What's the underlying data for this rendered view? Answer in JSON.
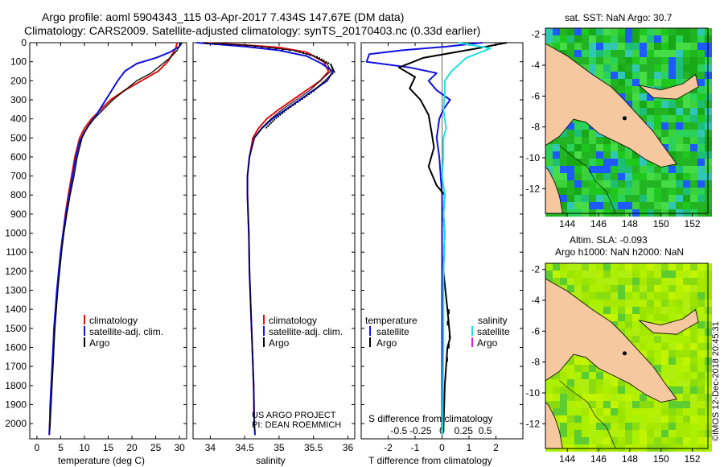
{
  "title": {
    "line1": "Argo profile: aoml 5904343_115 03-Apr-2017 7.434S 147.67E (DM data)",
    "line2": "Climatology: CARS2009. Satellite-adjusted climatology: synTS_20170403.nc (0.33d earlier)"
  },
  "colors": {
    "climatology": "#e01010",
    "satellite": "#1010e0",
    "argo": "#000000",
    "salinity_satellite": "#20e0e0",
    "salinity_argo": "#e020e0",
    "land": "#f5c8a0"
  },
  "chart_data": [
    {
      "id": "temperature",
      "type": "line",
      "xlabel": "temperature (deg C)",
      "xlim": [
        -1.5,
        31.5
      ],
      "xticks": [
        0,
        5,
        10,
        15,
        20,
        25,
        30
      ],
      "ylim": [
        0,
        2080
      ],
      "yticks": [
        0,
        100,
        200,
        300,
        400,
        500,
        600,
        700,
        800,
        900,
        1000,
        1100,
        1200,
        1300,
        1400,
        1500,
        1600,
        1700,
        1800,
        1900,
        2000
      ],
      "legend": [
        "climatology",
        "satellite-adj. clim.",
        "Argo"
      ],
      "series": [
        {
          "name": "climatology",
          "points": [
            [
              29.5,
              0
            ],
            [
              29.2,
              30
            ],
            [
              28.5,
              60
            ],
            [
              27.5,
              100
            ],
            [
              25.5,
              150
            ],
            [
              22,
              200
            ],
            [
              18.5,
              250
            ],
            [
              15.5,
              300
            ],
            [
              13.5,
              350
            ],
            [
              11.5,
              400
            ],
            [
              10,
              450
            ],
            [
              9,
              500
            ],
            [
              8,
              600
            ],
            [
              7.3,
              700
            ],
            [
              6.6,
              800
            ],
            [
              6,
              900
            ],
            [
              5.5,
              1000
            ],
            [
              5,
              1100
            ],
            [
              4.6,
              1200
            ],
            [
              4.3,
              1300
            ],
            [
              4,
              1400
            ],
            [
              3.7,
              1500
            ],
            [
              3.5,
              1600
            ],
            [
              3.3,
              1700
            ],
            [
              3.1,
              1800
            ],
            [
              2.9,
              1900
            ],
            [
              2.7,
              2000
            ],
            [
              2.6,
              2060
            ]
          ]
        },
        {
          "name": "satellite-adj. clim.",
          "points": [
            [
              30.5,
              0
            ],
            [
              30,
              20
            ],
            [
              28,
              50
            ],
            [
              25,
              80
            ],
            [
              21,
              110
            ],
            [
              18.5,
              150
            ],
            [
              17,
              200
            ],
            [
              15.5,
              260
            ],
            [
              14,
              320
            ],
            [
              12.5,
              380
            ],
            [
              11,
              430
            ],
            [
              10,
              470
            ],
            [
              9,
              520
            ],
            [
              8.2,
              600
            ],
            [
              7.5,
              700
            ],
            [
              6.8,
              800
            ],
            [
              6.1,
              900
            ],
            [
              5.5,
              1000
            ],
            [
              5,
              1100
            ],
            [
              4.6,
              1200
            ],
            [
              4.2,
              1300
            ],
            [
              3.9,
              1400
            ],
            [
              3.6,
              1500
            ],
            [
              3.4,
              1600
            ],
            [
              3.2,
              1700
            ],
            [
              3,
              1800
            ],
            [
              2.8,
              1900
            ],
            [
              2.7,
              2000
            ],
            [
              2.6,
              2060
            ]
          ]
        },
        {
          "name": "Argo",
          "points": [
            [
              30.3,
              0
            ],
            [
              29.5,
              40
            ],
            [
              28,
              80
            ],
            [
              26,
              120
            ],
            [
              24,
              160
            ],
            [
              21,
              200
            ],
            [
              18.5,
              250
            ],
            [
              16,
              300
            ],
            [
              14,
              350
            ],
            [
              12,
              400
            ],
            [
              10.5,
              450
            ],
            [
              9.5,
              500
            ],
            [
              8.5,
              600
            ],
            [
              7.8,
              700
            ],
            [
              7,
              800
            ],
            [
              6.3,
              900
            ],
            [
              5.7,
              1000
            ],
            [
              5.2,
              1100
            ],
            [
              4.8,
              1200
            ],
            [
              4.4,
              1300
            ],
            [
              4.1,
              1400
            ],
            [
              3.8,
              1500
            ],
            [
              3.6,
              1600
            ],
            [
              3.4,
              1700
            ],
            [
              3.2,
              1800
            ],
            [
              3,
              1900
            ],
            [
              2.8,
              2000
            ],
            [
              2.7,
              2040
            ]
          ]
        }
      ]
    },
    {
      "id": "salinity",
      "type": "line",
      "xlabel": "salinity",
      "xlim": [
        33.75,
        36.1
      ],
      "xticks": [
        34,
        34.5,
        35,
        35.5,
        36
      ],
      "xticklabels": [
        "34",
        "34.5",
        "35",
        "35.5",
        "36"
      ],
      "ylim": [
        0,
        2080
      ],
      "legend": [
        "climatology",
        "satellite-adj. clim.",
        "Argo"
      ],
      "annotation": [
        "US ARGO PROJECT",
        "PI: DEAN ROEMMICH"
      ],
      "series": [
        {
          "name": "climatology",
          "points": [
            [
              33.9,
              0
            ],
            [
              34.4,
              10
            ],
            [
              35,
              25
            ],
            [
              35.4,
              50
            ],
            [
              35.65,
              100
            ],
            [
              35.72,
              150
            ],
            [
              35.6,
              200
            ],
            [
              35.4,
              250
            ],
            [
              35.2,
              300
            ],
            [
              35,
              350
            ],
            [
              34.82,
              400
            ],
            [
              34.7,
              450
            ],
            [
              34.62,
              500
            ],
            [
              34.57,
              600
            ],
            [
              34.54,
              700
            ],
            [
              34.54,
              800
            ],
            [
              34.55,
              900
            ],
            [
              34.56,
              1000
            ],
            [
              34.57,
              1200
            ],
            [
              34.59,
              1400
            ],
            [
              34.61,
              1600
            ],
            [
              34.63,
              1800
            ],
            [
              34.64,
              2000
            ],
            [
              34.65,
              2060
            ]
          ]
        },
        {
          "name": "satellite-adj. clim.",
          "points": [
            [
              33.8,
              0
            ],
            [
              34.5,
              20
            ],
            [
              35,
              40
            ],
            [
              35.4,
              70
            ],
            [
              35.62,
              110
            ],
            [
              35.78,
              150
            ],
            [
              35.7,
              200
            ],
            [
              35.5,
              250
            ],
            [
              35.3,
              300
            ],
            [
              35.1,
              350
            ],
            [
              34.9,
              400
            ],
            [
              34.75,
              450
            ],
            [
              34.64,
              500
            ],
            [
              34.57,
              600
            ],
            [
              34.54,
              700
            ],
            [
              34.54,
              800
            ],
            [
              34.55,
              900
            ],
            [
              34.56,
              1000
            ],
            [
              34.57,
              1200
            ],
            [
              34.59,
              1400
            ],
            [
              34.61,
              1600
            ],
            [
              34.63,
              1800
            ],
            [
              34.64,
              2000
            ],
            [
              34.65,
              2060
            ]
          ]
        },
        {
          "name": "Argo",
          "points": [
            [
              33.9,
              0
            ],
            [
              34.6,
              15
            ],
            [
              35.2,
              40
            ],
            [
              35.5,
              70
            ],
            [
              35.7,
              110
            ],
            [
              35.75,
              150
            ],
            [
              35.6,
              200
            ],
            [
              35.45,
              250
            ],
            [
              35.25,
              300
            ],
            [
              35.05,
              350
            ],
            [
              34.88,
              400
            ],
            [
              34.74,
              450
            ],
            [
              34.64,
              500
            ],
            [
              34.57,
              600
            ],
            [
              34.54,
              700
            ],
            [
              34.54,
              800
            ],
            [
              34.55,
              900
            ],
            [
              34.56,
              1000
            ],
            [
              34.57,
              1200
            ],
            [
              34.59,
              1400
            ],
            [
              34.61,
              1600
            ],
            [
              34.63,
              1800
            ],
            [
              34.64,
              2000
            ],
            [
              34.65,
              2040
            ]
          ]
        }
      ]
    },
    {
      "id": "difference",
      "type": "line",
      "xlabel": "T difference from climatology",
      "xlabel_top": "S difference from climatology",
      "xlim": [
        -3,
        3
      ],
      "xticks": [
        -2,
        -1,
        0,
        1,
        2
      ],
      "xticklabels": [
        "-2",
        "-1",
        "0",
        "1",
        "2"
      ],
      "top_ticks_svalue": [
        -0.5,
        -0.25,
        0,
        0.25,
        0.5
      ],
      "top_ticklabels": [
        "-0.5",
        "-0.25",
        "0",
        "0.25",
        "0.5"
      ],
      "ylim": [
        0,
        2080
      ],
      "legend_temperature": {
        "header": "temperature",
        "items": [
          "satellite",
          "Argo"
        ]
      },
      "legend_salinity": {
        "header": "salinity",
        "items": [
          "satellite",
          "Argo"
        ]
      },
      "series": [
        {
          "name": "temperature satellite",
          "points": [
            [
              1.5,
              0
            ],
            [
              0.2,
              20
            ],
            [
              -1.5,
              40
            ],
            [
              -2.7,
              60
            ],
            [
              -2.8,
              100
            ],
            [
              -1.2,
              130
            ],
            [
              -0.2,
              160
            ],
            [
              -0.5,
              200
            ],
            [
              -0.2,
              250
            ],
            [
              0.3,
              300
            ],
            [
              0.05,
              350
            ],
            [
              -0.1,
              400
            ],
            [
              -0.15,
              450
            ],
            [
              -0.2,
              500
            ],
            [
              -0.1,
              600
            ],
            [
              0,
              800
            ],
            [
              0,
              1000
            ],
            [
              0,
              1500
            ],
            [
              0,
              2060
            ]
          ]
        },
        {
          "name": "temperature Argo",
          "points": [
            [
              2.4,
              0
            ],
            [
              1.3,
              30
            ],
            [
              -0.7,
              80
            ],
            [
              -1.6,
              130
            ],
            [
              -1,
              180
            ],
            [
              -1.2,
              240
            ],
            [
              -0.8,
              300
            ],
            [
              -0.5,
              380
            ],
            [
              -0.4,
              460
            ],
            [
              -0.3,
              550
            ],
            [
              -0.5,
              650
            ],
            [
              -0.2,
              750
            ],
            [
              0.1,
              800
            ],
            [
              0.05,
              900
            ],
            [
              0.1,
              1000
            ],
            [
              0.05,
              1200
            ],
            [
              0.2,
              1400
            ],
            [
              0.3,
              1550
            ],
            [
              0.2,
              1600
            ],
            [
              0.1,
              1800
            ],
            [
              0.05,
              2040
            ]
          ]
        },
        {
          "name": "salinity satellite",
          "points": [
            [
              0.6,
              0
            ],
            [
              1.8,
              30
            ],
            [
              0.9,
              80
            ],
            [
              0.35,
              150
            ],
            [
              0.1,
              200
            ],
            [
              0.1,
              260
            ],
            [
              0.05,
              350
            ],
            [
              0.15,
              450
            ],
            [
              0.05,
              500
            ],
            [
              0.05,
              600
            ],
            [
              0,
              700
            ],
            [
              0.1,
              800
            ],
            [
              0.05,
              900
            ],
            [
              0.1,
              1000
            ],
            [
              0.05,
              1200
            ],
            [
              0.05,
              1400
            ],
            [
              0.05,
              1600
            ],
            [
              0.02,
              2000
            ],
            [
              0,
              2060
            ]
          ]
        }
      ]
    },
    {
      "id": "sst-map",
      "type": "heatmap",
      "title": "sat. SST: NaN Argo: 30.7",
      "xticks": [
        144,
        146,
        148,
        150,
        152
      ],
      "yticks": [
        -2,
        -4,
        -6,
        -8,
        -10,
        -12
      ],
      "xlim": [
        142.6,
        153
      ],
      "ylim": [
        -13.6,
        -1.6
      ]
    },
    {
      "id": "sla-map",
      "type": "heatmap",
      "title_line1": "Altim. SLA: -0.093",
      "title_line2": "Argo h1000: NaN h2000: NaN",
      "xticks": [
        144,
        146,
        148,
        150,
        152
      ],
      "yticks": [
        -2,
        -4,
        -6,
        -8,
        -10,
        -12
      ],
      "xlim": [
        142.6,
        153
      ],
      "ylim": [
        -13.6,
        -1.6
      ]
    }
  ],
  "footer": {
    "stamp": "©IMOS 12-Dec-2018 20:45:31"
  }
}
